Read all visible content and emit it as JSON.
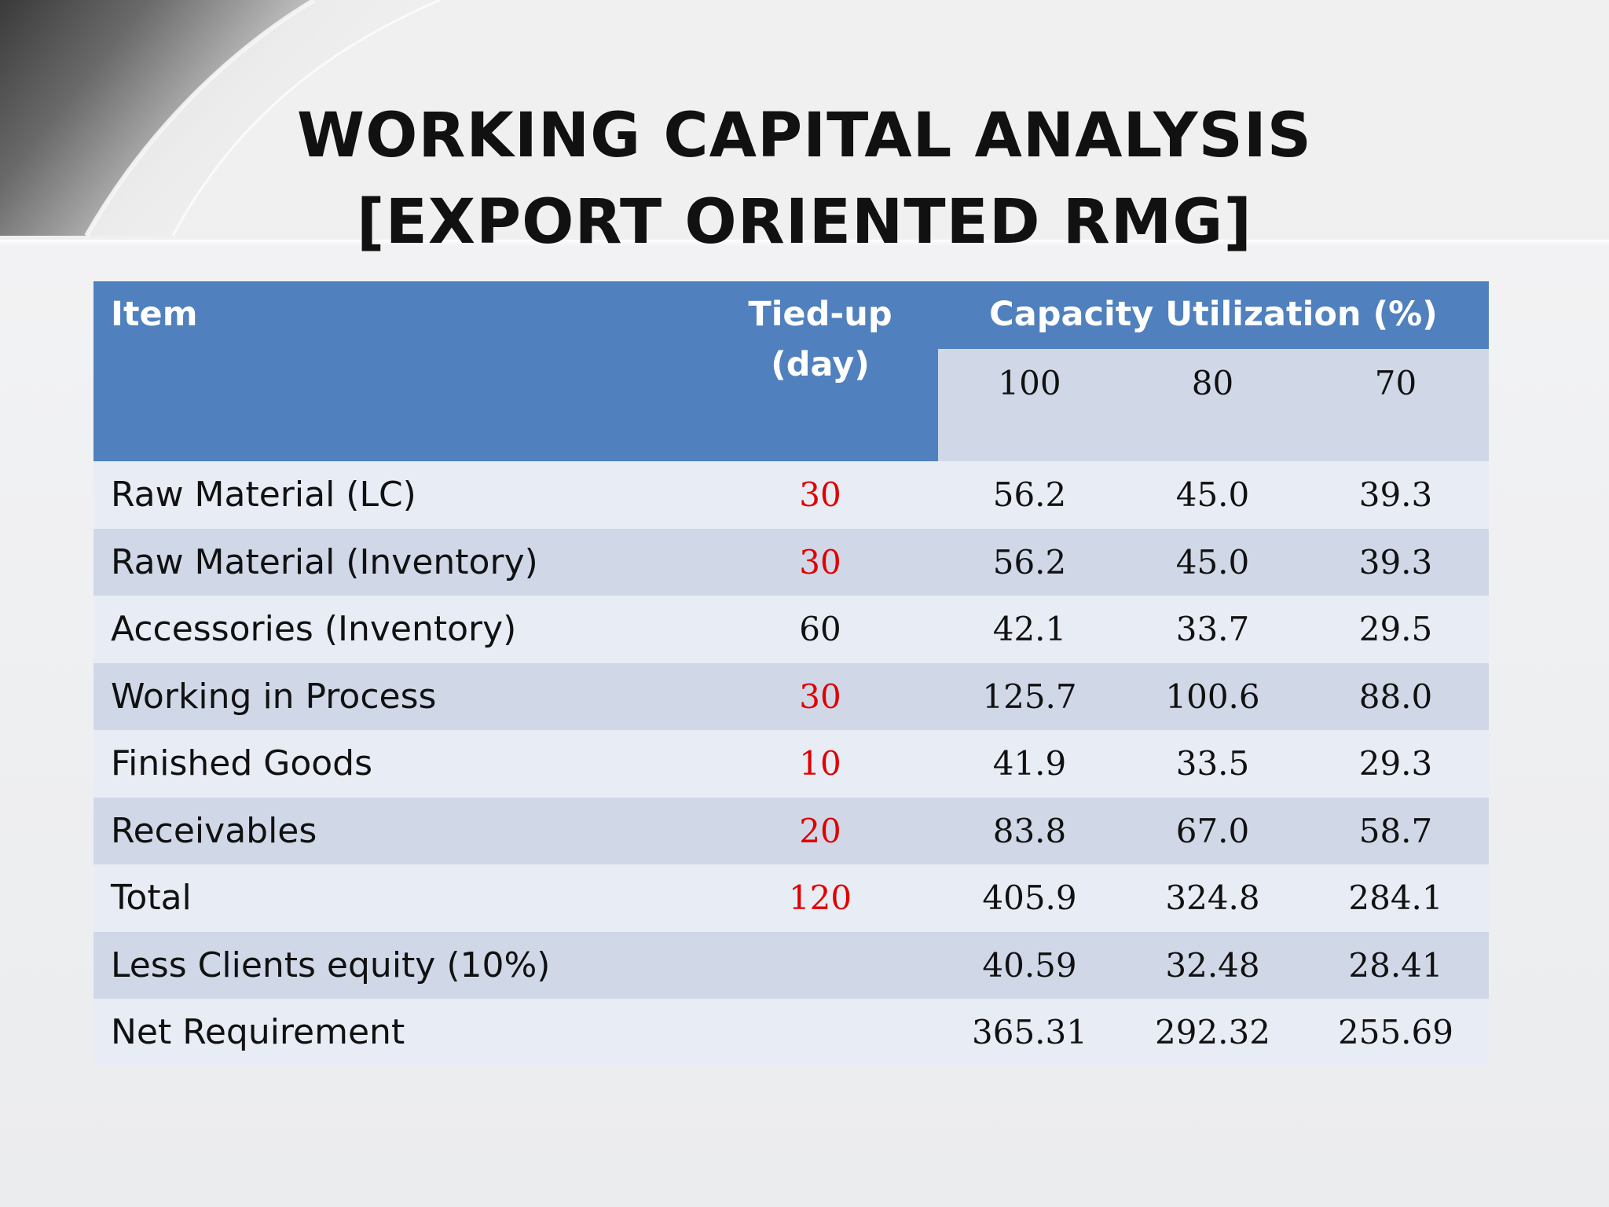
{
  "title": {
    "line1": "WORKING CAPITAL ANALYSIS",
    "line2": "[EXPORT ORIENTED RMG]"
  },
  "colors": {
    "header_bg": "#5080bd",
    "row_light": "#e8ecf4",
    "row_dark": "#d0d8e8",
    "highlight_red": "#e00000"
  },
  "table": {
    "headers": {
      "item": "Item",
      "tied_line1": "Tied-up",
      "tied_line2": "(day)",
      "capacity": "Capacity Utilization (%)",
      "cap_cols": [
        "100",
        "80",
        "70"
      ]
    },
    "rows": [
      {
        "item": "Raw Material (LC)",
        "tied": "30",
        "tied_red": true,
        "v1": "56.2",
        "v2": "45.0",
        "v3": "39.3"
      },
      {
        "item": "Raw Material (Inventory)",
        "tied": "30",
        "tied_red": true,
        "v1": "56.2",
        "v2": "45.0",
        "v3": "39.3"
      },
      {
        "item": "Accessories (Inventory)",
        "tied": "60",
        "tied_red": false,
        "v1": "42.1",
        "v2": "33.7",
        "v3": "29.5"
      },
      {
        "item": "Working in Process",
        "tied": "30",
        "tied_red": true,
        "v1": "125.7",
        "v2": "100.6",
        "v3": "88.0"
      },
      {
        "item": "Finished Goods",
        "tied": "10",
        "tied_red": true,
        "v1": "41.9",
        "v2": "33.5",
        "v3": "29.3"
      },
      {
        "item": "Receivables",
        "tied": "20",
        "tied_red": true,
        "v1": "83.8",
        "v2": "67.0",
        "v3": "58.7"
      },
      {
        "item": "Total",
        "tied": "120",
        "tied_red": true,
        "v1": "405.9",
        "v2": "324.8",
        "v3": "284.1"
      },
      {
        "item": "Less Clients equity (10%)",
        "tied": "",
        "tied_red": false,
        "v1": "40.59",
        "v2": "32.48",
        "v3": "28.41"
      },
      {
        "item": "Net Requirement",
        "tied": "",
        "tied_red": false,
        "v1": "365.31",
        "v2": "292.32",
        "v3": "255.69"
      }
    ]
  }
}
